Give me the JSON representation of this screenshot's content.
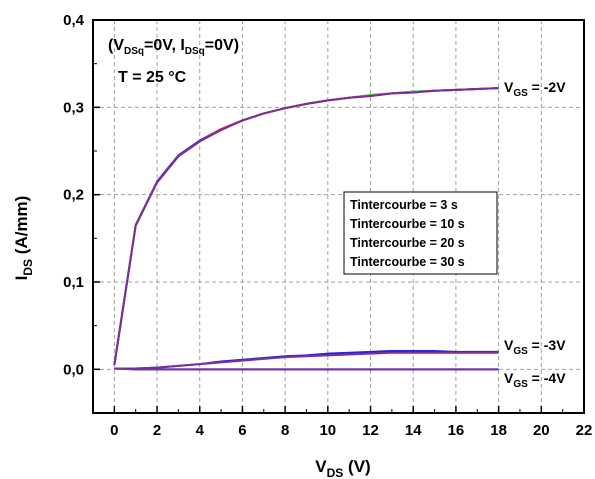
{
  "chart_data": {
    "type": "line",
    "xlabel": "V",
    "xlabel_sub": "DS",
    "xlabel_unit": " (V)",
    "ylabel": "I",
    "ylabel_sub": "DS",
    "ylabel_unit": " (A/mm)",
    "xlim": [
      -1,
      22
    ],
    "ylim": [
      -0.05,
      0.4
    ],
    "xticks": [
      0,
      2,
      4,
      6,
      8,
      10,
      12,
      14,
      16,
      18,
      20,
      22
    ],
    "xtick_labels": [
      "0",
      "2",
      "4",
      "6",
      "8",
      "10",
      "12",
      "14",
      "16",
      "18",
      "20",
      "22"
    ],
    "yticks": [
      0.0,
      0.1,
      0.2,
      0.3,
      0.4
    ],
    "ytick_labels": [
      "0,0",
      "0,1",
      "0,2",
      "0,3",
      "0,4"
    ],
    "grid": true,
    "annotations": {
      "bias_line": {
        "open": "(V",
        "sub1": "DSq",
        "mid": "=0V, I",
        "sub2": "DSq",
        "close": "=0V)"
      },
      "temperature": "T = 25 °C"
    },
    "curve_labels": [
      {
        "main": "V",
        "sub": "GS",
        "rest": " = -2V"
      },
      {
        "main": "V",
        "sub": "GS",
        "rest": " = -3V"
      },
      {
        "main": "V",
        "sub": "GS",
        "rest": " = -4V"
      }
    ],
    "legend": {
      "position": "center-right",
      "entries": [
        {
          "label": "Tintercourbe = 3 s",
          "color": "#7B2F9E"
        },
        {
          "label": "Tintercourbe = 10 s",
          "color": "#FF1A1A"
        },
        {
          "label": "Tintercourbe = 20 s",
          "color": "#2EE62E"
        },
        {
          "label": "Tintercourbe = 30 s",
          "color": "#2424D8"
        }
      ]
    },
    "x": [
      0,
      1,
      2,
      3,
      4,
      5,
      6,
      7,
      8,
      9,
      10,
      11,
      12,
      13,
      14,
      15,
      16,
      17,
      18
    ],
    "series": [
      {
        "group": "VGS=-2V",
        "color": "#2424D8",
        "values": [
          0.005,
          0.165,
          0.215,
          0.245,
          0.262,
          0.275,
          0.285,
          0.293,
          0.299,
          0.304,
          0.308,
          0.311,
          0.314,
          0.316,
          0.318,
          0.319,
          0.32,
          0.321,
          0.322
        ]
      },
      {
        "group": "VGS=-2V",
        "color": "#2EE62E",
        "values": [
          0.005,
          0.164,
          0.214,
          0.244,
          0.261,
          0.274,
          0.285,
          0.293,
          0.299,
          0.304,
          0.308,
          0.311,
          0.314,
          0.316,
          0.318,
          0.319,
          0.32,
          0.321,
          0.322
        ]
      },
      {
        "group": "VGS=-2V",
        "color": "#FF1A1A",
        "values": [
          0.005,
          0.165,
          0.214,
          0.244,
          0.261,
          0.275,
          0.285,
          0.293,
          0.299,
          0.304,
          0.308,
          0.311,
          0.313,
          0.316,
          0.317,
          0.319,
          0.32,
          0.321,
          0.322
        ]
      },
      {
        "group": "VGS=-2V",
        "color": "#7B2F9E",
        "values": [
          0.005,
          0.165,
          0.214,
          0.244,
          0.261,
          0.274,
          0.285,
          0.293,
          0.299,
          0.304,
          0.308,
          0.311,
          0.313,
          0.316,
          0.317,
          0.319,
          0.32,
          0.321,
          0.322
        ]
      },
      {
        "group": "VGS=-3V",
        "color": "#2424D8",
        "values": [
          0.001,
          0.001,
          0.002,
          0.004,
          0.006,
          0.009,
          0.011,
          0.013,
          0.015,
          0.016,
          0.018,
          0.019,
          0.02,
          0.021,
          0.021,
          0.021,
          0.02,
          0.02,
          0.02
        ]
      },
      {
        "group": "VGS=-3V",
        "color": "#7B2F9E",
        "values": [
          0.001,
          0.001,
          0.002,
          0.004,
          0.006,
          0.008,
          0.01,
          0.012,
          0.014,
          0.015,
          0.016,
          0.017,
          0.018,
          0.019,
          0.019,
          0.019,
          0.019,
          0.019,
          0.019
        ]
      },
      {
        "group": "VGS=-4V",
        "color": "#2424D8",
        "values": [
          0.001,
          0.0,
          0.0,
          0.0,
          0.0,
          0.0,
          0.0,
          0.0,
          0.0,
          0.0,
          0.0,
          0.0,
          0.0,
          0.0,
          0.0,
          0.0,
          0.0,
          0.0,
          0.0
        ]
      },
      {
        "group": "VGS=-4V",
        "color": "#7B2F9E",
        "values": [
          0.001,
          0.0,
          0.0,
          0.0,
          0.0,
          0.0,
          0.0,
          0.0,
          0.0,
          0.0,
          0.0,
          0.0,
          0.0,
          0.0,
          0.0,
          0.0,
          0.0,
          0.0,
          0.0
        ]
      }
    ]
  }
}
